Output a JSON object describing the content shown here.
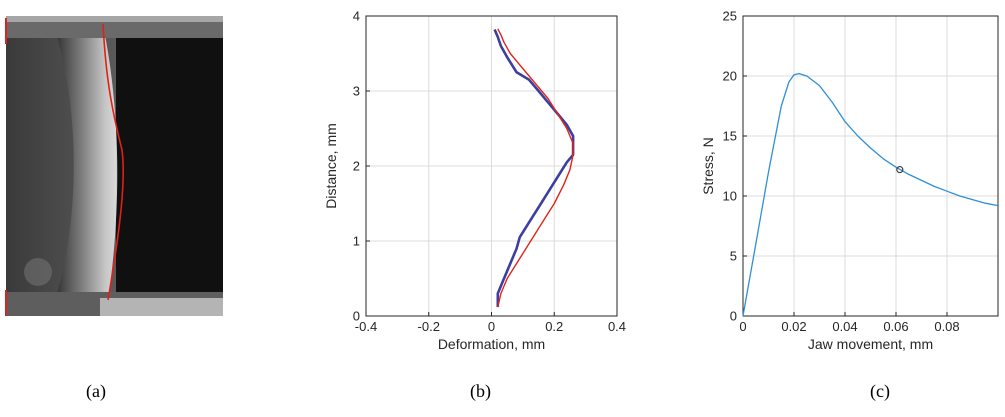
{
  "panel_labels": [
    "(a)",
    "(b)",
    "(c)"
  ],
  "colors": {
    "b_measured": "#3a3fa0",
    "b_fit": "#e2231a",
    "c_line": "#2f8fd8",
    "edge_trace": "#e0201a",
    "grid": "#dcdcdc",
    "axis": "#262626"
  },
  "chart_data": [
    {
      "type": "line",
      "panel": "(b)",
      "title": "",
      "xlabel": "Deformation, mm",
      "ylabel": "Distance, mm",
      "xlim": [
        -0.4,
        0.4
      ],
      "ylim": [
        0,
        4
      ],
      "xticks": [
        -0.4,
        -0.2,
        0,
        0.2,
        0.4
      ],
      "xtick_labels": [
        "-0.4",
        "-0.2",
        "0",
        "0.2",
        "0.4"
      ],
      "yticks": [
        0,
        1,
        2,
        3,
        4
      ],
      "ytick_labels": [
        "0",
        "1",
        "2",
        "3",
        "4"
      ],
      "grid": true,
      "series": [
        {
          "role": "measured",
          "x": [
            0.02,
            0.02,
            0.04,
            0.06,
            0.08,
            0.09,
            0.12,
            0.15,
            0.18,
            0.21,
            0.24,
            0.26,
            0.26,
            0.26,
            0.24,
            0.21,
            0.18,
            0.15,
            0.12,
            0.08,
            0.05,
            0.03,
            0.02,
            0.01
          ],
          "y": [
            0.12,
            0.3,
            0.5,
            0.7,
            0.9,
            1.05,
            1.25,
            1.45,
            1.65,
            1.85,
            2.05,
            2.15,
            2.25,
            2.4,
            2.55,
            2.7,
            2.85,
            3.0,
            3.15,
            3.25,
            3.45,
            3.6,
            3.72,
            3.82
          ]
        },
        {
          "role": "fit",
          "x": [
            0.02,
            0.03,
            0.05,
            0.08,
            0.11,
            0.14,
            0.17,
            0.2,
            0.23,
            0.25,
            0.26,
            0.26,
            0.24,
            0.21,
            0.18,
            0.15,
            0.12,
            0.09,
            0.06,
            0.04,
            0.03,
            0.02
          ],
          "y": [
            0.12,
            0.3,
            0.5,
            0.7,
            0.9,
            1.1,
            1.3,
            1.5,
            1.75,
            1.95,
            2.15,
            2.3,
            2.5,
            2.7,
            2.9,
            3.05,
            3.2,
            3.35,
            3.5,
            3.65,
            3.75,
            3.83
          ]
        }
      ]
    },
    {
      "type": "line",
      "panel": "(c)",
      "title": "",
      "xlabel": "Jaw movement, mm",
      "ylabel": "Stress, N",
      "xlim": [
        0,
        0.1
      ],
      "ylim": [
        0,
        25
      ],
      "xticks": [
        0,
        0.02,
        0.04,
        0.06,
        0.08
      ],
      "xtick_labels": [
        "0",
        "0.02",
        "0.04",
        "0.06",
        "0.08"
      ],
      "yticks": [
        0,
        5,
        10,
        15,
        20,
        25
      ],
      "ytick_labels": [
        "0",
        "5",
        "10",
        "15",
        "20",
        "25"
      ],
      "grid": true,
      "series": [
        {
          "x": [
            0,
            0.005,
            0.01,
            0.015,
            0.018,
            0.02,
            0.022,
            0.025,
            0.03,
            0.035,
            0.04,
            0.045,
            0.05,
            0.055,
            0.06,
            0.065,
            0.07,
            0.075,
            0.08,
            0.085,
            0.09,
            0.095,
            0.1
          ],
          "y": [
            0,
            6.0,
            12.0,
            17.5,
            19.5,
            20.1,
            20.2,
            20.0,
            19.2,
            17.8,
            16.2,
            15.0,
            14.0,
            13.1,
            12.4,
            11.8,
            11.3,
            10.8,
            10.4,
            10.0,
            9.7,
            9.4,
            9.2
          ]
        }
      ],
      "marker": {
        "x": 0.0615,
        "y": 12.2
      }
    }
  ]
}
